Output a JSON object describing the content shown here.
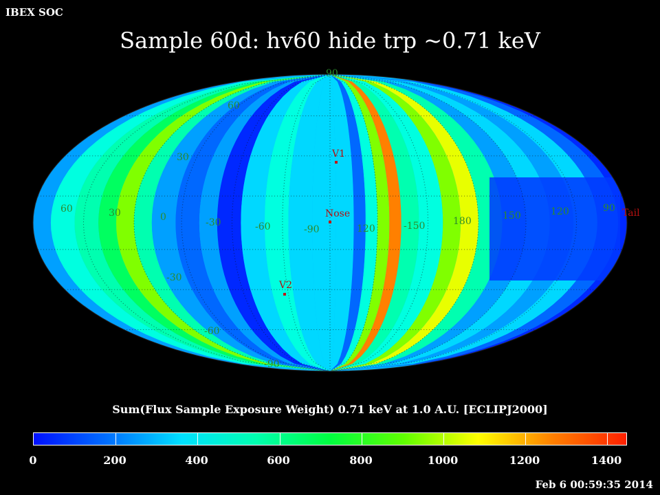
{
  "header": {
    "org": "IBEX SOC",
    "title": "Sample 60d: hv60 hide trp ~0.71 keV",
    "timestamp": "Feb  6 00:59:35 2014"
  },
  "map": {
    "projection": "aitoff / mollweide-like full-sky",
    "lat_labels": [
      "90",
      "60",
      "30",
      "-30",
      "-60",
      "-90"
    ],
    "lon_labels": [
      "60",
      "30",
      "0",
      "-30",
      "-60",
      "-90",
      "120",
      "-150",
      "180",
      "150",
      "120",
      "90"
    ],
    "markers": [
      {
        "label": "V1"
      },
      {
        "label": "Nose"
      },
      {
        "label": "V2"
      },
      {
        "label": "Tail"
      }
    ],
    "colors": {
      "marker": "#c01818",
      "grid": "#2c8a2c"
    }
  },
  "colorbar": {
    "title": "Sum(Flux Sample Exposure Weight)  0.71 keV at 1.0 A.U. [ECLIPJ2000]",
    "ticks": [
      "0",
      "200",
      "400",
      "600",
      "800",
      "1000",
      "1200",
      "1400"
    ],
    "min": 0,
    "max": 1450,
    "stops": [
      "#0010ff",
      "#0070ff",
      "#00e0ff",
      "#00ffb0",
      "#00ff40",
      "#60ff00",
      "#ffff00",
      "#ff8000",
      "#ff2000"
    ]
  }
}
